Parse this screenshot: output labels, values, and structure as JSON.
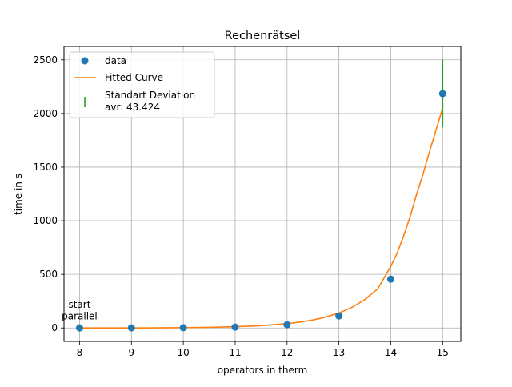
{
  "chart_data": {
    "type": "scatter",
    "title": "Rechenrätsel",
    "xlabel": "operators in therm",
    "ylabel": "time in s",
    "xlim": [
      7.7,
      15.35
    ],
    "ylim": [
      -125,
      2625
    ],
    "xticks": [
      8,
      9,
      10,
      11,
      12,
      13,
      14,
      15
    ],
    "yticks": [
      0,
      500,
      1000,
      1500,
      2000,
      2500
    ],
    "grid": true,
    "legend_position": "top-left",
    "series": [
      {
        "name": "data",
        "kind": "points",
        "color": "#1f77b4",
        "x": [
          8,
          9,
          10,
          11,
          12,
          13,
          14,
          15
        ],
        "y": [
          0.3,
          1.0,
          2.5,
          8,
          30,
          112,
          455,
          2185
        ]
      },
      {
        "name": "Fitted Curve",
        "kind": "line",
        "color": "#ff7f0e",
        "x": [
          8,
          8.5,
          9,
          9.5,
          10,
          10.5,
          11,
          11.5,
          12,
          12.25,
          12.5,
          12.75,
          13,
          13.25,
          13.5,
          13.75,
          14,
          14.125,
          14.25,
          14.375,
          14.5,
          14.625,
          14.75,
          14.875,
          15
        ],
        "y": [
          0.1,
          0.3,
          0.6,
          1.3,
          2.8,
          6,
          12.5,
          22,
          40,
          55,
          75,
          102,
          140,
          192,
          265,
          365,
          575,
          700,
          860,
          1040,
          1250,
          1440,
          1650,
          1850,
          2050
        ]
      },
      {
        "name": "Standart Deviation\navr: 43.424",
        "kind": "errorbar",
        "color": "#2ca02c",
        "x": [
          15
        ],
        "y": [
          2185
        ],
        "yerr_low": [
          1870
        ],
        "yerr_high": [
          2500
        ]
      }
    ],
    "annotations": [
      {
        "text": "start\nparallel",
        "x": 8,
        "y": 80
      }
    ]
  }
}
